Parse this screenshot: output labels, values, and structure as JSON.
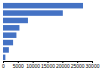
{
  "chart_data": {
    "type": "bar",
    "orientation": "horizontal",
    "categories": [
      null,
      null,
      null,
      null,
      null,
      null,
      null,
      null
    ],
    "values": [
      26970,
      20165,
      8410,
      5540,
      4525,
      3400,
      1975,
      800
    ],
    "color": "#4472c4",
    "xlim": [
      0,
      30000
    ],
    "xticks": [
      0,
      5000,
      10000,
      15000,
      20000,
      25000,
      30000
    ],
    "tick_labels": "x"
  }
}
